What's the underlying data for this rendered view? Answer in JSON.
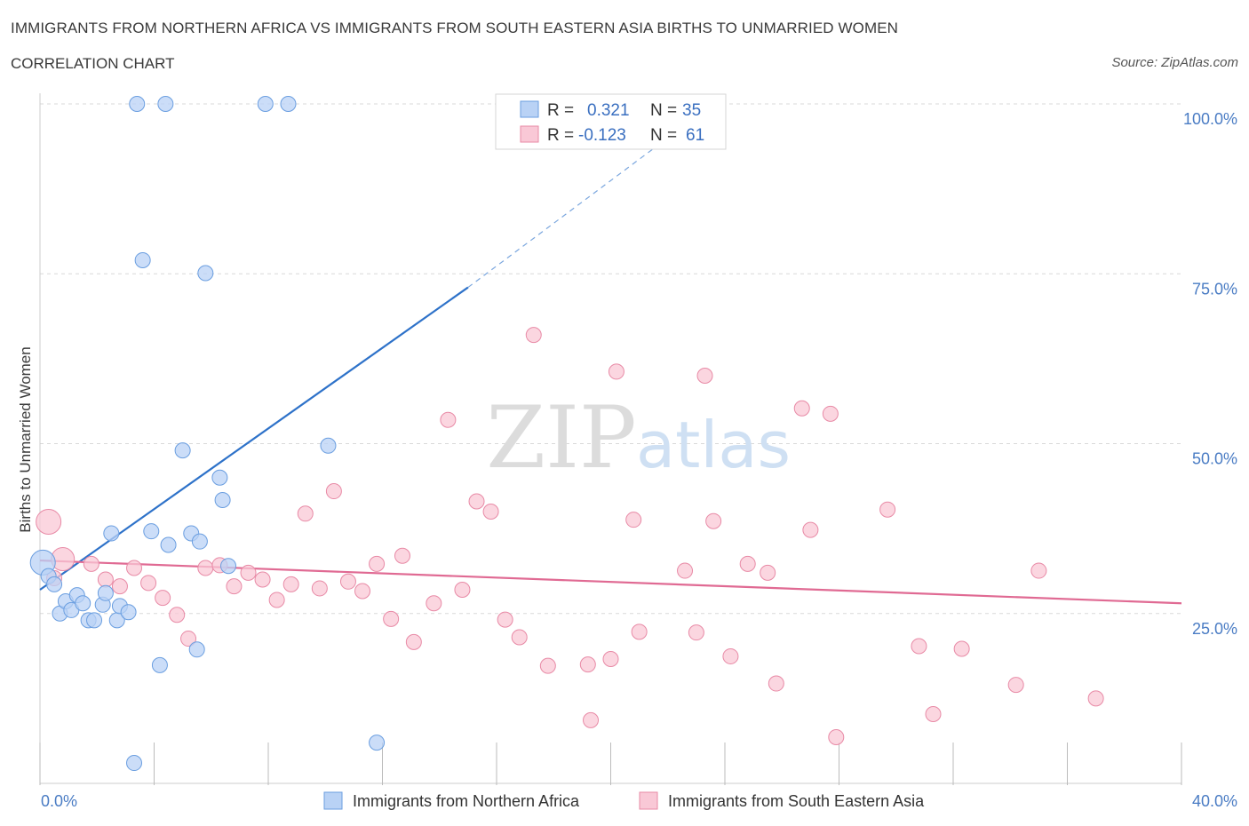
{
  "header": {
    "title": "IMMIGRANTS FROM NORTHERN AFRICA VS IMMIGRANTS FROM SOUTH EASTERN ASIA BIRTHS TO UNMARRIED WOMEN",
    "subtitle": "CORRELATION CHART",
    "source": "Source: ZipAtlas.com"
  },
  "watermark": {
    "zip": "ZIP",
    "atlas": "atlas"
  },
  "legend": {
    "r_label": "R =",
    "n_label": "N =",
    "series1": {
      "r": "0.321",
      "n": "35"
    },
    "series2": {
      "r": "-0.123",
      "n": "61"
    }
  },
  "colors": {
    "blue_fill": "#b9d2f5",
    "blue_stroke": "#6a9ee0",
    "blue_line": "#2e72c9",
    "pink_fill": "#f9c8d6",
    "pink_stroke": "#e88aa6",
    "pink_line": "#e06a93",
    "grid": "#d9d9d9",
    "axis_text": "#4a7cc4"
  },
  "chart_data": {
    "type": "scatter",
    "title": "IMMIGRANTS FROM NORTHERN AFRICA VS IMMIGRANTS FROM SOUTH EASTERN ASIA BIRTHS TO UNMARRIED WOMEN",
    "xlabel": "",
    "ylabel": "Births to Unmarried Women",
    "xlim": [
      0,
      40
    ],
    "ylim": [
      0,
      100
    ],
    "x_tick_labels": [
      "0.0%",
      "40.0%"
    ],
    "y_ticks": [
      25,
      50,
      75,
      100
    ],
    "y_tick_labels": [
      "25.0%",
      "50.0%",
      "75.0%",
      "100.0%"
    ],
    "legend_placement": "top-center",
    "series": [
      {
        "name": "Immigrants from Northern Africa",
        "color": "blue",
        "R": 0.321,
        "N": 35,
        "trend": {
          "x0": 0.0,
          "y0": 28.5,
          "x1": 15.0,
          "y1": 73.0,
          "dashed_to_x": 22.0,
          "dashed_to_y": 95.0
        },
        "points": [
          [
            3.4,
            100
          ],
          [
            4.4,
            100
          ],
          [
            7.9,
            100
          ],
          [
            8.7,
            100
          ],
          [
            3.6,
            77
          ],
          [
            5.8,
            75.1
          ],
          [
            0.1,
            32.5
          ],
          [
            0.3,
            30.5
          ],
          [
            0.5,
            29.3
          ],
          [
            0.7,
            25
          ],
          [
            0.9,
            26.8
          ],
          [
            1.1,
            25.5
          ],
          [
            1.3,
            27.7
          ],
          [
            1.5,
            26.5
          ],
          [
            1.7,
            24
          ],
          [
            1.9,
            24
          ],
          [
            2.2,
            26.3
          ],
          [
            2.3,
            28
          ],
          [
            2.5,
            36.8
          ],
          [
            2.7,
            24
          ],
          [
            2.8,
            26.1
          ],
          [
            3.1,
            25.2
          ],
          [
            3.9,
            37.1
          ],
          [
            4.5,
            35.1
          ],
          [
            5.0,
            49
          ],
          [
            5.3,
            36.8
          ],
          [
            5.5,
            19.7
          ],
          [
            5.6,
            35.6
          ],
          [
            6.3,
            45
          ],
          [
            6.4,
            41.7
          ],
          [
            6.6,
            32
          ],
          [
            4.2,
            17.4
          ],
          [
            10.1,
            49.7
          ],
          [
            11.8,
            6
          ],
          [
            3.3,
            3
          ]
        ]
      },
      {
        "name": "Immigrants from South Eastern Asia",
        "color": "pink",
        "R": -0.123,
        "N": 61,
        "trend": {
          "x0": 0.0,
          "y0": 32.8,
          "x1": 40.0,
          "y1": 26.5
        },
        "points": [
          [
            0.3,
            38.5
          ],
          [
            0.8,
            33
          ],
          [
            1.8,
            32.3
          ],
          [
            2.3,
            30
          ],
          [
            2.8,
            29
          ],
          [
            3.3,
            31.7
          ],
          [
            3.8,
            29.5
          ],
          [
            4.3,
            27.3
          ],
          [
            4.8,
            24.8
          ],
          [
            5.2,
            21.3
          ],
          [
            5.8,
            31.7
          ],
          [
            6.3,
            32.1
          ],
          [
            6.8,
            29
          ],
          [
            7.3,
            31
          ],
          [
            7.8,
            30
          ],
          [
            8.3,
            27
          ],
          [
            8.8,
            29.3
          ],
          [
            9.3,
            39.7
          ],
          [
            9.8,
            28.7
          ],
          [
            10.3,
            43
          ],
          [
            10.8,
            29.7
          ],
          [
            11.3,
            28.3
          ],
          [
            11.8,
            32.3
          ],
          [
            12.3,
            24.2
          ],
          [
            12.7,
            33.5
          ],
          [
            13.1,
            20.8
          ],
          [
            13.8,
            26.5
          ],
          [
            14.3,
            53.5
          ],
          [
            14.8,
            28.5
          ],
          [
            15.3,
            41.5
          ],
          [
            15.8,
            40
          ],
          [
            16.3,
            24.1
          ],
          [
            16.8,
            21.5
          ],
          [
            17.3,
            66
          ],
          [
            17.8,
            17.3
          ],
          [
            19.2,
            17.5
          ],
          [
            19.3,
            9.3
          ],
          [
            20.0,
            18.3
          ],
          [
            20.2,
            60.6
          ],
          [
            20.8,
            38.8
          ],
          [
            21.0,
            22.3
          ],
          [
            22.6,
            31.3
          ],
          [
            23.0,
            22.2
          ],
          [
            23.3,
            60
          ],
          [
            23.6,
            38.6
          ],
          [
            24.2,
            18.7
          ],
          [
            24.8,
            32.3
          ],
          [
            25.5,
            31
          ],
          [
            25.8,
            14.7
          ],
          [
            26.7,
            55.2
          ],
          [
            27.0,
            37.3
          ],
          [
            27.7,
            54.4
          ],
          [
            27.9,
            6.8
          ],
          [
            29.7,
            40.3
          ],
          [
            30.8,
            20.2
          ],
          [
            31.3,
            10.2
          ],
          [
            32.3,
            19.8
          ],
          [
            34.2,
            14.5
          ],
          [
            35.0,
            31.3
          ],
          [
            37.0,
            12.5
          ],
          [
            0.5,
            30.2
          ]
        ]
      }
    ]
  }
}
